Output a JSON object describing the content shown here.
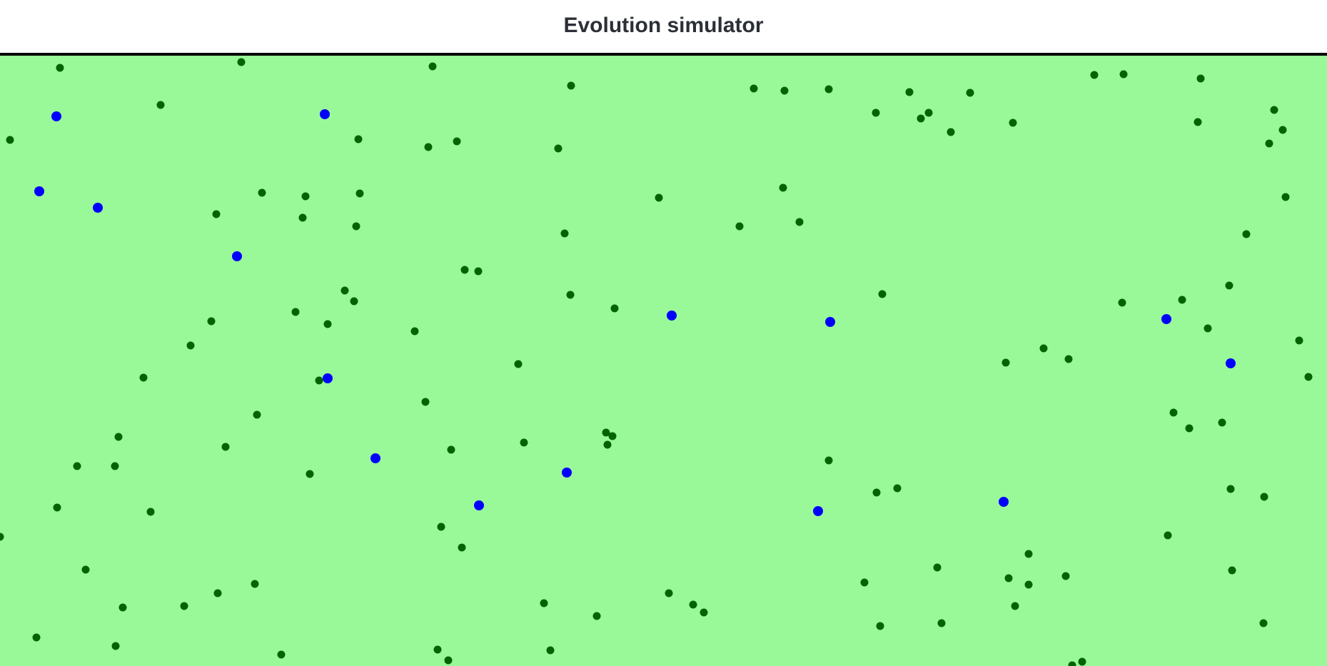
{
  "header": {
    "title": "Evolution simulator"
  },
  "world": {
    "background_color": "#99f999",
    "food_color": "#006400",
    "creature_color": "#0000ff"
  }
}
